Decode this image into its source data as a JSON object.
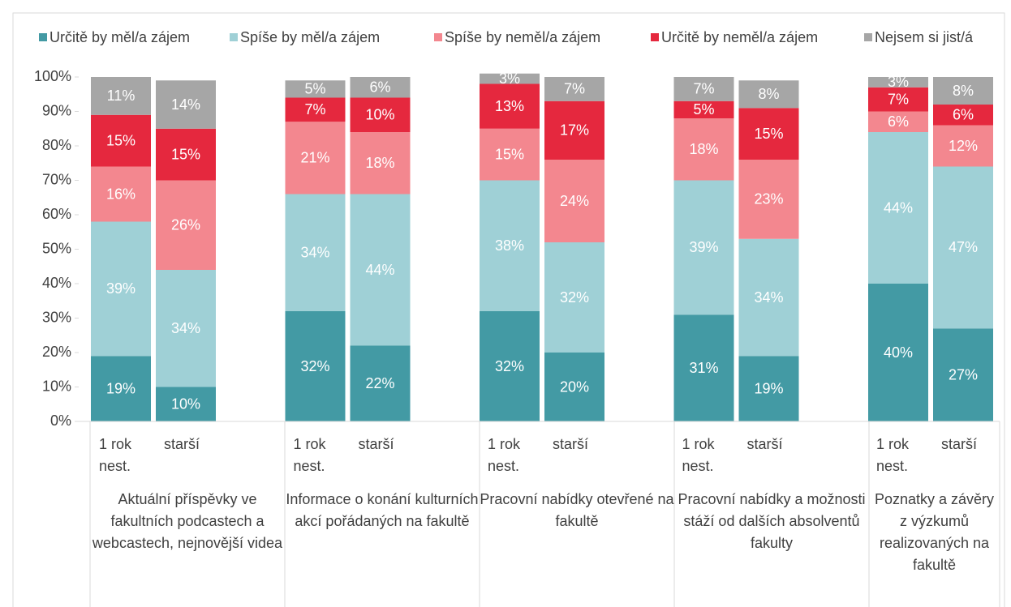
{
  "chart_data": {
    "type": "stacked_bar",
    "categories": [
      "1 rok nest.",
      "starší",
      "1 rok nest.",
      "starší",
      "1 rok nest.",
      "starší",
      "1 rok nest.",
      "starší",
      "1 rok nest.",
      "starší"
    ],
    "groups": [
      "Aktuální příspěvky ve fakultních podcastech a webcastech, nejnovější videa",
      "Informace o konání kulturních akcí pořádaných na fakultě",
      "Pracovní nabídky otevřené na fakultě",
      "Pracovní nabídky a možnosti stáží od dalších absolventů fakulty",
      "Poznatky a závěry z výzkumů realizovaných na fakultě"
    ],
    "series": [
      {
        "name": "Určitě by měl/a zájem",
        "color": "#439aa4",
        "values": [
          19,
          10,
          32,
          22,
          32,
          20,
          31,
          19,
          40,
          27
        ],
        "value_labels": [
          "19%",
          "10%",
          "32%",
          "22%",
          "32%",
          "20%",
          "31%",
          "19%",
          "40%",
          "27%"
        ]
      },
      {
        "name": "Spíše by měl/a zájem",
        "color": "#9fd0d6",
        "values": [
          39,
          34,
          34,
          44,
          38,
          32,
          39,
          34,
          44,
          47
        ],
        "value_labels": [
          "39%",
          "34%",
          "34%",
          "44%",
          "38%",
          "32%",
          "39%",
          "34%",
          "44%",
          "47%"
        ]
      },
      {
        "name": "Spíše by neměl/a zájem",
        "color": "#f3878f",
        "values": [
          16,
          26,
          21,
          18,
          15,
          24,
          18,
          23,
          6,
          12
        ],
        "value_labels": [
          "16%",
          "26%",
          "21%",
          "18%",
          "15%",
          "24%",
          "18%",
          "23%",
          "6%",
          "12%"
        ]
      },
      {
        "name": "Určitě by neměl/a zájem",
        "color": "#e5283e",
        "values": [
          15,
          15,
          7,
          10,
          13,
          17,
          5,
          15,
          7,
          6
        ],
        "value_labels": [
          "15%",
          "15%",
          "7%",
          "10%",
          "13%",
          "17%",
          "5%",
          "15%",
          "7%",
          "6%"
        ]
      },
      {
        "name": "Nejsem si jist/á",
        "color": "#a6a6a6",
        "values": [
          11,
          14,
          5,
          6,
          3,
          7,
          7,
          8,
          3,
          8
        ],
        "value_labels": [
          "11%",
          "14%",
          "5%",
          "6%",
          "3%",
          "7%",
          "7%",
          "8%",
          "3%",
          "8%"
        ]
      }
    ],
    "ylim": [
      0,
      100
    ],
    "yticks": [
      {
        "value": 0,
        "label": "0%"
      },
      {
        "value": 10,
        "label": "10%"
      },
      {
        "value": 20,
        "label": "20%"
      },
      {
        "value": 30,
        "label": "30%"
      },
      {
        "value": 40,
        "label": "40%"
      },
      {
        "value": 50,
        "label": "50%"
      },
      {
        "value": 60,
        "label": "60%"
      },
      {
        "value": 70,
        "label": "70%"
      },
      {
        "value": 80,
        "label": "80%"
      },
      {
        "value": 90,
        "label": "90%"
      },
      {
        "value": 100,
        "label": "100%"
      }
    ],
    "legend": "top"
  }
}
